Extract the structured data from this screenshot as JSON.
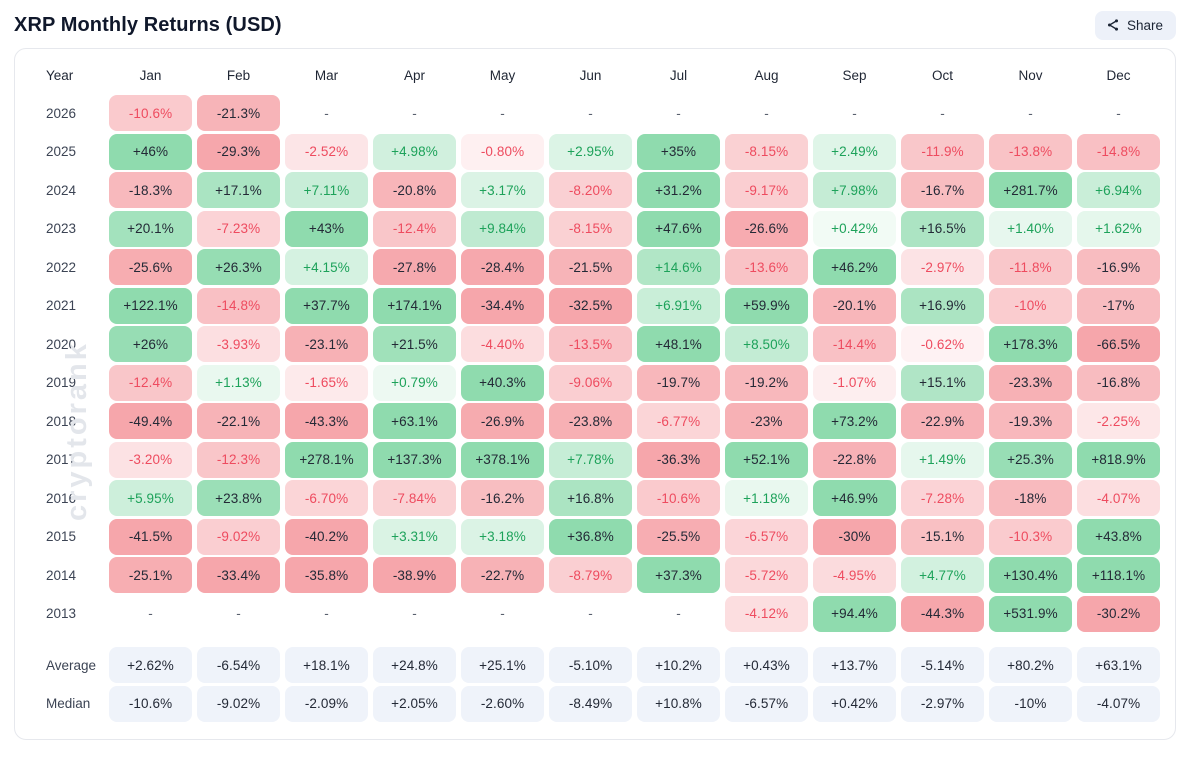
{
  "header": {
    "title": "XRP Monthly Returns (USD)",
    "share_label": "Share"
  },
  "watermark": "cryptorank",
  "colors": {
    "positive_bg_full": "#8fdbae",
    "negative_bg_full": "#f6a6ab",
    "positive_text": "#1da25a",
    "negative_text": "#ee4b5f",
    "dark_text": "#232936",
    "summary_cell_bg": "#eff3fa",
    "dash_text": "#59606e",
    "share_button_bg": "#edf1f9",
    "card_border": "#e6e8ed"
  },
  "table": {
    "year_header": "Year",
    "months": [
      "Jan",
      "Feb",
      "Mar",
      "Apr",
      "May",
      "Jun",
      "Jul",
      "Aug",
      "Sep",
      "Oct",
      "Nov",
      "Dec"
    ],
    "rows": [
      {
        "year": "2026",
        "values": [
          "-10.6%",
          "-21.3%",
          "-",
          "-",
          "-",
          "-",
          "-",
          "-",
          "-",
          "-",
          "-",
          "-"
        ]
      },
      {
        "year": "2025",
        "values": [
          "+46%",
          "-29.3%",
          "-2.52%",
          "+4.98%",
          "-0.80%",
          "+2.95%",
          "+35%",
          "-8.15%",
          "+2.49%",
          "-11.9%",
          "-13.8%",
          "-14.8%"
        ]
      },
      {
        "year": "2024",
        "values": [
          "-18.3%",
          "+17.1%",
          "+7.11%",
          "-20.8%",
          "+3.17%",
          "-8.20%",
          "+31.2%",
          "-9.17%",
          "+7.98%",
          "-16.7%",
          "+281.7%",
          "+6.94%"
        ]
      },
      {
        "year": "2023",
        "values": [
          "+20.1%",
          "-7.23%",
          "+43%",
          "-12.4%",
          "+9.84%",
          "-8.15%",
          "+47.6%",
          "-26.6%",
          "+0.42%",
          "+16.5%",
          "+1.40%",
          "+1.62%"
        ]
      },
      {
        "year": "2022",
        "values": [
          "-25.6%",
          "+26.3%",
          "+4.15%",
          "-27.8%",
          "-28.4%",
          "-21.5%",
          "+14.6%",
          "-13.6%",
          "+46.2%",
          "-2.97%",
          "-11.8%",
          "-16.9%"
        ]
      },
      {
        "year": "2021",
        "values": [
          "+122.1%",
          "-14.8%",
          "+37.7%",
          "+174.1%",
          "-34.4%",
          "-32.5%",
          "+6.91%",
          "+59.9%",
          "-20.1%",
          "+16.9%",
          "-10%",
          "-17%"
        ]
      },
      {
        "year": "2020",
        "values": [
          "+26%",
          "-3.93%",
          "-23.1%",
          "+21.5%",
          "-4.40%",
          "-13.5%",
          "+48.1%",
          "+8.50%",
          "-14.4%",
          "-0.62%",
          "+178.3%",
          "-66.5%"
        ]
      },
      {
        "year": "2019",
        "values": [
          "-12.4%",
          "+1.13%",
          "-1.65%",
          "+0.79%",
          "+40.3%",
          "-9.06%",
          "-19.7%",
          "-19.2%",
          "-1.07%",
          "+15.1%",
          "-23.3%",
          "-16.8%"
        ]
      },
      {
        "year": "2018",
        "values": [
          "-49.4%",
          "-22.1%",
          "-43.3%",
          "+63.1%",
          "-26.9%",
          "-23.8%",
          "-6.77%",
          "-23%",
          "+73.2%",
          "-22.9%",
          "-19.3%",
          "-2.25%"
        ]
      },
      {
        "year": "2017",
        "values": [
          "-3.20%",
          "-12.3%",
          "+278.1%",
          "+137.3%",
          "+378.1%",
          "+7.78%",
          "-36.3%",
          "+52.1%",
          "-22.8%",
          "+1.49%",
          "+25.3%",
          "+818.9%"
        ]
      },
      {
        "year": "2016",
        "values": [
          "+5.95%",
          "+23.8%",
          "-6.70%",
          "-7.84%",
          "-16.2%",
          "+16.8%",
          "-10.6%",
          "+1.18%",
          "+46.9%",
          "-7.28%",
          "-18%",
          "-4.07%"
        ]
      },
      {
        "year": "2015",
        "values": [
          "-41.5%",
          "-9.02%",
          "-40.2%",
          "+3.31%",
          "+3.18%",
          "+36.8%",
          "-25.5%",
          "-6.57%",
          "-30%",
          "-15.1%",
          "-10.3%",
          "+43.8%"
        ]
      },
      {
        "year": "2014",
        "values": [
          "-25.1%",
          "-33.4%",
          "-35.8%",
          "-38.9%",
          "-22.7%",
          "-8.79%",
          "+37.3%",
          "-5.72%",
          "-4.95%",
          "+4.77%",
          "+130.4%",
          "+118.1%"
        ]
      },
      {
        "year": "2013",
        "values": [
          "-",
          "-",
          "-",
          "-",
          "-",
          "-",
          "-",
          "-4.12%",
          "+94.4%",
          "-44.3%",
          "+531.9%",
          "-30.2%"
        ]
      }
    ],
    "summary_rows": [
      {
        "label": "Average",
        "values": [
          "+2.62%",
          "-6.54%",
          "+18.1%",
          "+24.8%",
          "+25.1%",
          "-5.10%",
          "+10.2%",
          "+0.43%",
          "+13.7%",
          "-5.14%",
          "+80.2%",
          "+63.1%"
        ]
      },
      {
        "label": "Median",
        "values": [
          "-10.6%",
          "-9.02%",
          "-2.09%",
          "+2.05%",
          "-2.60%",
          "-8.49%",
          "+10.8%",
          "-6.57%",
          "+0.42%",
          "-2.97%",
          "-10%",
          "-4.07%"
        ]
      }
    ]
  },
  "chart_data": {
    "type": "heatmap",
    "title": "XRP Monthly Returns (USD)",
    "unit": "%",
    "x": [
      "Jan",
      "Feb",
      "Mar",
      "Apr",
      "May",
      "Jun",
      "Jul",
      "Aug",
      "Sep",
      "Oct",
      "Nov",
      "Dec"
    ],
    "y": [
      "2026",
      "2025",
      "2024",
      "2023",
      "2022",
      "2021",
      "2020",
      "2019",
      "2018",
      "2017",
      "2016",
      "2015",
      "2014",
      "2013"
    ],
    "values": [
      [
        -10.6,
        -21.3,
        null,
        null,
        null,
        null,
        null,
        null,
        null,
        null,
        null,
        null
      ],
      [
        46,
        -29.3,
        -2.52,
        4.98,
        -0.8,
        2.95,
        35,
        -8.15,
        2.49,
        -11.9,
        -13.8,
        -14.8
      ],
      [
        -18.3,
        17.1,
        7.11,
        -20.8,
        3.17,
        -8.2,
        31.2,
        -9.17,
        7.98,
        -16.7,
        281.7,
        6.94
      ],
      [
        20.1,
        -7.23,
        43,
        -12.4,
        9.84,
        -8.15,
        47.6,
        -26.6,
        0.42,
        16.5,
        1.4,
        1.62
      ],
      [
        -25.6,
        26.3,
        4.15,
        -27.8,
        -28.4,
        -21.5,
        14.6,
        -13.6,
        46.2,
        -2.97,
        -11.8,
        -16.9
      ],
      [
        122.1,
        -14.8,
        37.7,
        174.1,
        -34.4,
        -32.5,
        6.91,
        59.9,
        -20.1,
        16.9,
        -10,
        -17
      ],
      [
        26,
        -3.93,
        -23.1,
        21.5,
        -4.4,
        -13.5,
        48.1,
        8.5,
        -14.4,
        -0.62,
        178.3,
        -66.5
      ],
      [
        -12.4,
        1.13,
        -1.65,
        0.79,
        40.3,
        -9.06,
        -19.7,
        -19.2,
        -1.07,
        15.1,
        -23.3,
        -16.8
      ],
      [
        -49.4,
        -22.1,
        -43.3,
        63.1,
        -26.9,
        -23.8,
        -6.77,
        -23,
        73.2,
        -22.9,
        -19.3,
        -2.25
      ],
      [
        -3.2,
        -12.3,
        278.1,
        137.3,
        378.1,
        7.78,
        -36.3,
        52.1,
        -22.8,
        1.49,
        25.3,
        818.9
      ],
      [
        5.95,
        23.8,
        -6.7,
        -7.84,
        -16.2,
        16.8,
        -10.6,
        1.18,
        46.9,
        -7.28,
        -18,
        -4.07
      ],
      [
        -41.5,
        -9.02,
        -40.2,
        3.31,
        3.18,
        36.8,
        -25.5,
        -6.57,
        -30,
        -15.1,
        -10.3,
        43.8
      ],
      [
        -25.1,
        -33.4,
        -35.8,
        -38.9,
        -22.7,
        -8.79,
        37.3,
        -5.72,
        -4.95,
        4.77,
        130.4,
        118.1
      ],
      [
        null,
        null,
        null,
        null,
        null,
        null,
        null,
        -4.12,
        94.4,
        -44.3,
        531.9,
        -30.2
      ]
    ],
    "summary": {
      "Average": [
        2.62,
        -6.54,
        18.1,
        24.8,
        25.1,
        -5.1,
        10.2,
        0.43,
        13.7,
        -5.14,
        80.2,
        63.1
      ],
      "Median": [
        -10.6,
        -9.02,
        -2.09,
        2.05,
        -2.6,
        -8.49,
        10.8,
        -6.57,
        0.42,
        -2.97,
        -10,
        -4.07
      ]
    },
    "legend_position": "none",
    "grid": false
  }
}
